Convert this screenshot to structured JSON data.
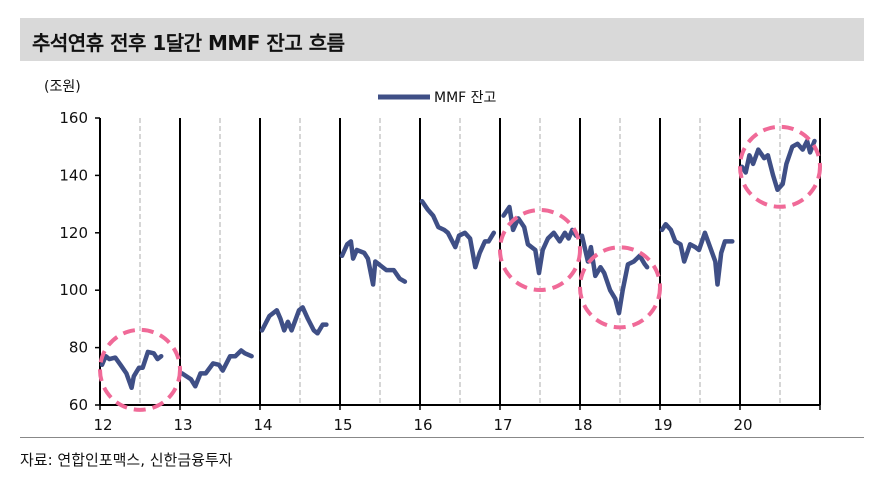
{
  "title": "추석연휴 전후 1달간 MMF 잔고 흐름",
  "source": "자료: 연합인포맥스, 신한금융투자",
  "chart_data": {
    "type": "line",
    "title": "추석연휴 전후 1달간 MMF 잔고 흐름",
    "ylabel": "(조원)",
    "ylim": [
      60,
      160
    ],
    "yticks": [
      60,
      80,
      100,
      120,
      140,
      160
    ],
    "x_tick_labels": [
      "12",
      "13",
      "14",
      "15",
      "16",
      "17",
      "18",
      "19",
      "20"
    ],
    "legend": {
      "label": "MMF 잔고",
      "placement": "top-center"
    },
    "colors": {
      "line": "#3f4f86",
      "highlight": "#f06a98",
      "year_divider": "#000000",
      "chuseok_divider": "#bbbbbb"
    },
    "x_note": "each year segment = 1 month around Chuseok; position given as fraction of segment (0.5 = Chuseok)",
    "highlighted_years": [
      "12",
      "17",
      "18",
      "20"
    ],
    "series": [
      {
        "year": "12",
        "points": [
          [
            0,
            74
          ],
          [
            0.05,
            77
          ],
          [
            0.1,
            76
          ],
          [
            0.18,
            76.5
          ],
          [
            0.25,
            74
          ],
          [
            0.33,
            71
          ],
          [
            0.4,
            66
          ],
          [
            0.43,
            70
          ],
          [
            0.5,
            73
          ],
          [
            0.55,
            73
          ],
          [
            0.62,
            78.5
          ],
          [
            0.7,
            78
          ],
          [
            0.75,
            76
          ],
          [
            0.8,
            77
          ]
        ]
      },
      {
        "year": "13",
        "points": [
          [
            0,
            71
          ],
          [
            0.12,
            69
          ],
          [
            0.18,
            66.5
          ],
          [
            0.25,
            71
          ],
          [
            0.32,
            71
          ],
          [
            0.42,
            74.5
          ],
          [
            0.5,
            74
          ],
          [
            0.55,
            72
          ],
          [
            0.65,
            77
          ],
          [
            0.72,
            77
          ],
          [
            0.8,
            79
          ],
          [
            0.85,
            78
          ],
          [
            0.94,
            77
          ]
        ]
      },
      {
        "year": "14",
        "points": [
          [
            0,
            86
          ],
          [
            0.1,
            91
          ],
          [
            0.2,
            93
          ],
          [
            0.25,
            90
          ],
          [
            0.3,
            86
          ],
          [
            0.35,
            89
          ],
          [
            0.4,
            86
          ],
          [
            0.5,
            93
          ],
          [
            0.55,
            94
          ],
          [
            0.62,
            90
          ],
          [
            0.7,
            86
          ],
          [
            0.75,
            85
          ],
          [
            0.82,
            88
          ],
          [
            0.87,
            88
          ]
        ]
      },
      {
        "year": "15",
        "points": [
          [
            0,
            112
          ],
          [
            0.07,
            116
          ],
          [
            0.12,
            117
          ],
          [
            0.15,
            111
          ],
          [
            0.2,
            114
          ],
          [
            0.3,
            113
          ],
          [
            0.35,
            111
          ],
          [
            0.42,
            102
          ],
          [
            0.45,
            110
          ],
          [
            0.5,
            109
          ],
          [
            0.6,
            107
          ],
          [
            0.7,
            107
          ],
          [
            0.78,
            104
          ],
          [
            0.85,
            103
          ]
        ]
      },
      {
        "year": "16",
        "points": [
          [
            0,
            131
          ],
          [
            0.08,
            128
          ],
          [
            0.15,
            126
          ],
          [
            0.22,
            122
          ],
          [
            0.3,
            121
          ],
          [
            0.35,
            120
          ],
          [
            0.45,
            115
          ],
          [
            0.5,
            119
          ],
          [
            0.58,
            120
          ],
          [
            0.65,
            118
          ],
          [
            0.72,
            108
          ],
          [
            0.78,
            113
          ],
          [
            0.85,
            117
          ],
          [
            0.9,
            117
          ],
          [
            0.97,
            120
          ]
        ]
      },
      {
        "year": "17",
        "points": [
          [
            0.02,
            126
          ],
          [
            0.1,
            129
          ],
          [
            0.15,
            121
          ],
          [
            0.22,
            125
          ],
          [
            0.3,
            122
          ],
          [
            0.35,
            116
          ],
          [
            0.45,
            114
          ],
          [
            0.5,
            106
          ],
          [
            0.55,
            114
          ],
          [
            0.62,
            118
          ],
          [
            0.7,
            120
          ],
          [
            0.78,
            117
          ],
          [
            0.85,
            120
          ],
          [
            0.9,
            118
          ],
          [
            0.95,
            121
          ],
          [
            1.0,
            119
          ]
        ]
      },
      {
        "year": "18",
        "points": [
          [
            0,
            119
          ],
          [
            0.08,
            110
          ],
          [
            0.12,
            115
          ],
          [
            0.18,
            105
          ],
          [
            0.25,
            108
          ],
          [
            0.3,
            106
          ],
          [
            0.38,
            100
          ],
          [
            0.45,
            97
          ],
          [
            0.5,
            92
          ],
          [
            0.55,
            100
          ],
          [
            0.62,
            109
          ],
          [
            0.7,
            110
          ],
          [
            0.78,
            112
          ],
          [
            0.85,
            109
          ],
          [
            0.88,
            108
          ]
        ]
      },
      {
        "year": "19",
        "points": [
          [
            0,
            121
          ],
          [
            0.05,
            123
          ],
          [
            0.12,
            121
          ],
          [
            0.18,
            117
          ],
          [
            0.25,
            116
          ],
          [
            0.3,
            110
          ],
          [
            0.38,
            116
          ],
          [
            0.45,
            115
          ],
          [
            0.5,
            114
          ],
          [
            0.58,
            120
          ],
          [
            0.65,
            115
          ],
          [
            0.72,
            110
          ],
          [
            0.75,
            102
          ],
          [
            0.8,
            113
          ],
          [
            0.85,
            117
          ],
          [
            0.95,
            117
          ]
        ]
      },
      {
        "year": "20",
        "points": [
          [
            0,
            143
          ],
          [
            0.05,
            141
          ],
          [
            0.1,
            147
          ],
          [
            0.15,
            144
          ],
          [
            0.22,
            149
          ],
          [
            0.3,
            146
          ],
          [
            0.35,
            147
          ],
          [
            0.42,
            140
          ],
          [
            0.48,
            135
          ],
          [
            0.55,
            137
          ],
          [
            0.6,
            144
          ],
          [
            0.68,
            150
          ],
          [
            0.75,
            151
          ],
          [
            0.82,
            149
          ],
          [
            0.88,
            152
          ],
          [
            0.92,
            148
          ],
          [
            0.98,
            152
          ]
        ]
      }
    ]
  }
}
